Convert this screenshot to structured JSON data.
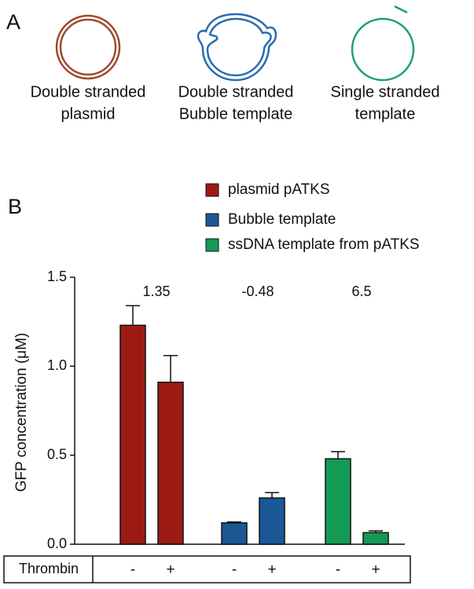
{
  "panel_a": {
    "label": "A",
    "items": [
      {
        "lines": [
          "Double stranded",
          "plasmid"
        ]
      },
      {
        "lines": [
          "Double stranded",
          "Bubble template"
        ]
      },
      {
        "lines": [
          "Single stranded",
          "template"
        ]
      }
    ]
  },
  "chart_data": {
    "type": "bar",
    "panel_label": "B",
    "y_label": "GFP concentration (μM)",
    "ylim": [
      0,
      1.5
    ],
    "yticks": [
      {
        "value": 0,
        "label": "0.0"
      },
      0.5,
      {
        "value": 1,
        "label": "1.0"
      },
      1.5
    ],
    "row_label": "Thrombin",
    "series": [
      {
        "name": "plasmid pATKS",
        "color": "#9b1b14",
        "values": [
          1.23,
          0.91
        ],
        "errors": [
          0.11,
          0.15
        ],
        "thrombin": [
          "-",
          "+"
        ],
        "annotation": "1.35"
      },
      {
        "name": "Bubble template",
        "color": "#1a5896",
        "values": [
          0.12,
          0.26
        ],
        "errors": [
          0.005,
          0.03
        ],
        "thrombin": [
          "-",
          "+"
        ],
        "annotation": "-0.48"
      },
      {
        "name": "ssDNA template from pATKS",
        "color": "#149a57",
        "values": [
          0.48,
          0.065
        ],
        "errors": [
          0.04,
          0.01
        ],
        "thrombin": [
          "-",
          "+"
        ],
        "annotation": "6.5"
      }
    ]
  }
}
